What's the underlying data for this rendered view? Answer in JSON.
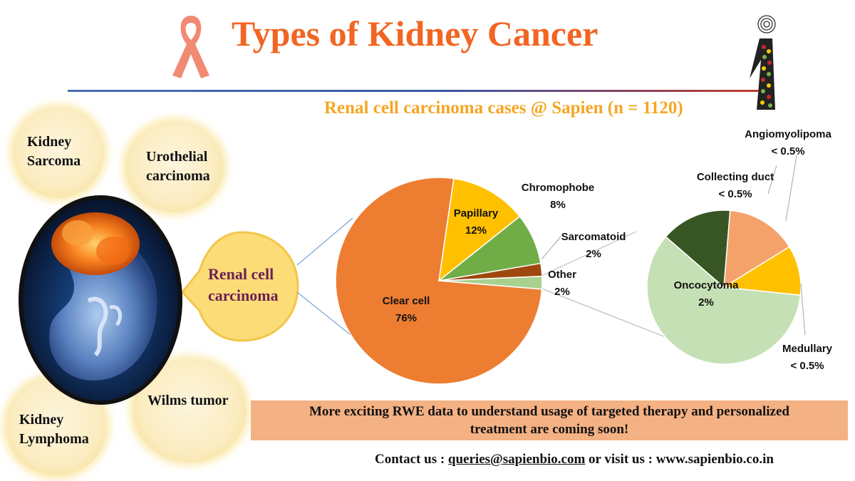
{
  "header": {
    "title": "Types of Kidney Cancer",
    "subtitle": "Renal cell carcinoma cases @ Sapien (n = 1120)"
  },
  "bubbles": {
    "kidney_sarcoma": [
      "Kidney",
      "Sarcoma"
    ],
    "urothelial": [
      "Urothelial",
      "carcinoma"
    ],
    "renal_cell": [
      "Renal cell",
      "carcinoma"
    ],
    "wilms": [
      "Wilms tumor"
    ],
    "kidney_lymphoma": [
      "Kidney",
      "Lymphoma"
    ]
  },
  "chart_data": [
    {
      "type": "pie",
      "title": "Renal cell carcinoma cases @ Sapien (n = 1120)",
      "slices": [
        {
          "label": "Clear cell",
          "value": 76,
          "value_label": "76%",
          "color": "#ed7d31"
        },
        {
          "label": "Papillary",
          "value": 12,
          "value_label": "12%",
          "color": "#ffc000"
        },
        {
          "label": "Chromophobe",
          "value": 8,
          "value_label": "8%",
          "color": "#70ad47"
        },
        {
          "label": "Sarcomatoid",
          "value": 2,
          "value_label": "2%",
          "color": "#9e480e"
        },
        {
          "label": "Other",
          "value": 2,
          "value_label": "2%",
          "color": "#a9d18e"
        }
      ]
    },
    {
      "type": "pie",
      "title": "Other",
      "slices": [
        {
          "label": "Oncocytoma",
          "value": 2,
          "value_label": "2%",
          "color": "#c5e0b4"
        },
        {
          "label": "Collecting duct",
          "value": 0.5,
          "value_label": "< 0.5%",
          "color": "#375623"
        },
        {
          "label": "Angiomyolipoma",
          "value": 0.5,
          "value_label": "< 0.5%",
          "color": "#f4a26a"
        },
        {
          "label": "Medullary",
          "value": 0.1,
          "value_label": "< 0.5%",
          "color": "#ffc000"
        }
      ]
    }
  ],
  "banner": {
    "line1": "More exciting  RWE data to understand usage of targeted therapy and personalized",
    "line2": "treatment are coming soon!"
  },
  "contact": {
    "prefix": "Contact us : ",
    "email": "queries@sapienbio.com",
    "suffix": " or visit us : www.sapienbio.co.in"
  }
}
